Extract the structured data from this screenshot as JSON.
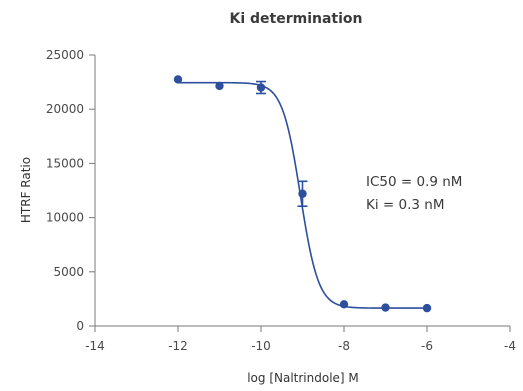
{
  "chart_data": {
    "type": "scatter",
    "title": "Ki determination",
    "xlabel": "log [Naltrindole] M",
    "ylabel": "HTRF Ratio",
    "xlim": [
      -14,
      -4
    ],
    "ylim": [
      0,
      25000
    ],
    "x_ticks": [
      -14,
      -12,
      -10,
      -8,
      -6,
      -4
    ],
    "y_ticks": [
      0,
      5000,
      10000,
      15000,
      20000,
      25000
    ],
    "x_tick_labels": [
      "-14",
      "-12",
      "-10",
      "-8",
      "-6",
      "-4"
    ],
    "y_tick_labels": [
      "0",
      "5000",
      "10000",
      "15000",
      "20000",
      "25000"
    ],
    "grid": false,
    "series": [
      {
        "points": [
          {
            "x": -12,
            "y": 22750,
            "err": 0
          },
          {
            "x": -11,
            "y": 22150,
            "err": 0
          },
          {
            "x": -10,
            "y": 22000,
            "err": 550
          },
          {
            "x": -9,
            "y": 12200,
            "err": 1150
          },
          {
            "x": -8,
            "y": 2000,
            "err": 0
          },
          {
            "x": -7,
            "y": 1700,
            "err": 0
          },
          {
            "x": -6,
            "y": 1650,
            "err": 0
          }
        ],
        "color": "#2c4f9e"
      }
    ],
    "fit_curve": {
      "model": "4PL",
      "top": 22450,
      "bottom": 1650,
      "log_ic50": -9.05,
      "hill": 2.0,
      "color": "#2c4f9e"
    },
    "annotations": [
      "IC50 = 0.9 nM",
      "Ki = 0.3 nM"
    ]
  }
}
